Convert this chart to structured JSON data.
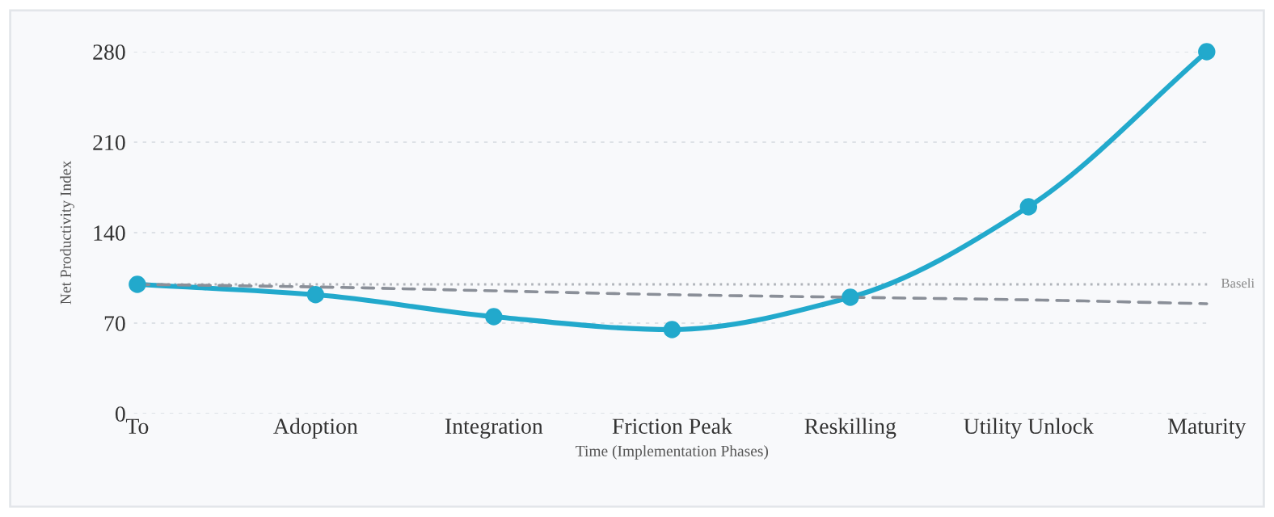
{
  "chart_data": {
    "type": "line",
    "xlabel": "Time (Implementation Phases)",
    "ylabel": "Net Productivity Index",
    "categories": [
      "To",
      "Adoption",
      "Integration",
      "Friction Peak",
      "Reskilling",
      "Utility Unlock",
      "Maturity"
    ],
    "series": [
      {
        "color": "#22a9cc",
        "values": [
          100,
          92,
          75,
          65,
          90,
          160,
          280
        ],
        "marker": "circle",
        "line_style": "solid"
      },
      {
        "color": "#8a8f98",
        "values": [
          100,
          98,
          95,
          92,
          90,
          88,
          85
        ],
        "marker": "none",
        "line_style": "dashed"
      }
    ],
    "ylim": [
      0,
      280
    ],
    "yticks": [
      0,
      70,
      140,
      210,
      280
    ],
    "grid": "y",
    "ref_lines": [
      {
        "axis": "y",
        "value": 100,
        "label": "Baseli",
        "color": "#b0b4ba",
        "line_style": "dotted"
      }
    ]
  }
}
